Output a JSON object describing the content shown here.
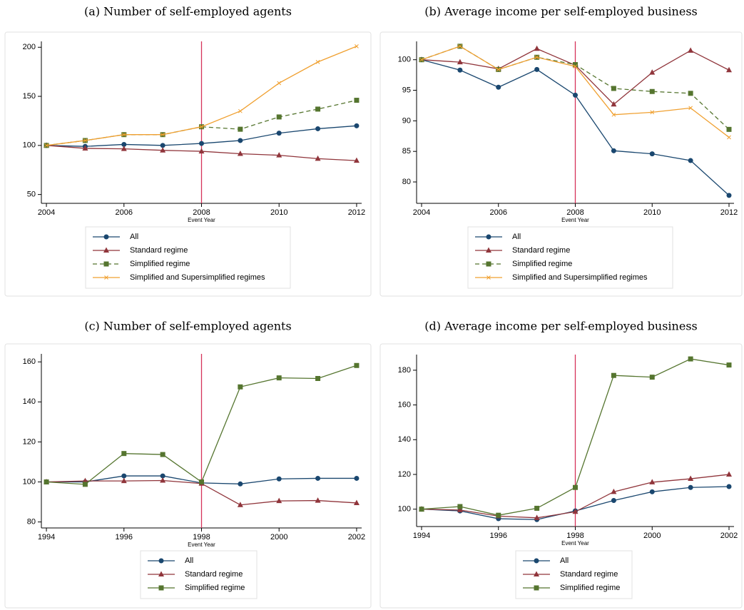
{
  "chart_data": [
    {
      "type": "line",
      "title": "(a) Number of self-employed agents",
      "xlabel": "Event Year",
      "x": [
        2004,
        2005,
        2006,
        2007,
        2008,
        2009,
        2010,
        2011,
        2012
      ],
      "xlim": [
        2003.87,
        2012.13
      ],
      "xticks": [
        2004,
        2006,
        2008,
        2010,
        2012
      ],
      "ylim": [
        41,
        206
      ],
      "yticks": [
        50,
        100,
        150,
        200
      ],
      "event_line": 2008,
      "event_line_color": "#d6335a",
      "series": [
        {
          "name": "All",
          "color": "#1a476f",
          "marker": "circle",
          "dashed": false,
          "values": [
            100,
            99,
            101,
            100,
            102,
            105,
            112.5,
            117,
            120
          ]
        },
        {
          "name": "Standard regime",
          "color": "#90353b",
          "marker": "triangle",
          "dashed": false,
          "values": [
            100,
            97,
            96.5,
            95,
            94,
            91.5,
            90,
            86.5,
            84.5
          ]
        },
        {
          "name": "Simplified regime",
          "color": "#55752f",
          "marker": "square",
          "dashed": true,
          "values": [
            100,
            105,
            111,
            111,
            119,
            116.5,
            129,
            137,
            146
          ]
        },
        {
          "name": "Simplified and Supersimplified regimes",
          "color": "#f0a030",
          "marker": "x",
          "dashed": false,
          "values": [
            100,
            105,
            111,
            111,
            119,
            135,
            163.5,
            185,
            201
          ]
        }
      ]
    },
    {
      "type": "line",
      "title": "(b) Average income per self-employed business",
      "xlabel": "Event Year",
      "x": [
        2004,
        2005,
        2006,
        2007,
        2008,
        2009,
        2010,
        2011,
        2012
      ],
      "xlim": [
        2003.87,
        2012.13
      ],
      "xticks": [
        2004,
        2006,
        2008,
        2010,
        2012
      ],
      "ylim": [
        76.5,
        103
      ],
      "yticks": [
        80,
        85,
        90,
        95,
        100
      ],
      "event_line": 2008,
      "event_line_color": "#d6335a",
      "series": [
        {
          "name": "All",
          "color": "#1a476f",
          "marker": "circle",
          "dashed": false,
          "values": [
            100,
            98.3,
            95.5,
            98.4,
            94.2,
            85.1,
            84.6,
            83.5,
            77.8
          ]
        },
        {
          "name": "Standard regime",
          "color": "#90353b",
          "marker": "triangle",
          "dashed": false,
          "values": [
            100,
            99.6,
            98.5,
            101.8,
            99.1,
            92.7,
            97.9,
            101.5,
            98.3
          ]
        },
        {
          "name": "Simplified regime",
          "color": "#55752f",
          "marker": "square",
          "dashed": true,
          "values": [
            100,
            102.2,
            98.4,
            100.4,
            99.2,
            95.3,
            94.8,
            94.5,
            88.6
          ]
        },
        {
          "name": "Simplified and Supersimplified regimes",
          "color": "#f0a030",
          "marker": "x",
          "dashed": false,
          "values": [
            100,
            102.2,
            98.4,
            100.4,
            98.9,
            91,
            91.4,
            92.1,
            87.3
          ]
        }
      ]
    },
    {
      "type": "line",
      "title": "(c) Number of self-employed agents",
      "xlabel": "Event Year",
      "x": [
        1994,
        1995,
        1996,
        1997,
        1998,
        1999,
        2000,
        2001,
        2002
      ],
      "xlim": [
        1993.87,
        2002.13
      ],
      "xticks": [
        1994,
        1996,
        1998,
        2000,
        2002
      ],
      "ylim": [
        77,
        164
      ],
      "yticks": [
        80,
        100,
        120,
        140,
        160
      ],
      "event_line": 1998,
      "event_line_color": "#d6335a",
      "series": [
        {
          "name": "All",
          "color": "#1a476f",
          "marker": "circle",
          "dashed": false,
          "values": [
            100,
            100,
            103,
            103,
            99.5,
            99,
            101.5,
            101.8,
            101.8
          ]
        },
        {
          "name": "Standard regime",
          "color": "#90353b",
          "marker": "triangle",
          "dashed": false,
          "values": [
            100,
            100.5,
            100.5,
            100.7,
            99.2,
            88.5,
            90.5,
            90.7,
            89.5
          ]
        },
        {
          "name": "Simplified regime",
          "color": "#55752f",
          "marker": "square",
          "dashed": false,
          "values": [
            100,
            98.8,
            114.2,
            113.7,
            100,
            147.5,
            152,
            151.7,
            158.2
          ]
        }
      ]
    },
    {
      "type": "line",
      "title": "(d) Average income per self-employed business",
      "xlabel": "Event Year",
      "x": [
        1994,
        1995,
        1996,
        1997,
        1998,
        1999,
        2000,
        2001,
        2002
      ],
      "xlim": [
        1993.87,
        2002.13
      ],
      "xticks": [
        1994,
        1996,
        1998,
        2000,
        2002
      ],
      "ylim": [
        90,
        189
      ],
      "yticks": [
        100,
        120,
        140,
        160,
        180
      ],
      "event_line": 1998,
      "event_line_color": "#d6335a",
      "series": [
        {
          "name": "All",
          "color": "#1a476f",
          "marker": "circle",
          "dashed": false,
          "values": [
            100,
            99,
            94.5,
            94,
            99,
            105,
            110,
            112.5,
            113
          ]
        },
        {
          "name": "Standard regime",
          "color": "#90353b",
          "marker": "triangle",
          "dashed": false,
          "values": [
            100,
            99.5,
            96,
            95,
            98.5,
            110,
            115.5,
            117.5,
            120
          ]
        },
        {
          "name": "Simplified regime",
          "color": "#55752f",
          "marker": "square",
          "dashed": false,
          "values": [
            100,
            101.5,
            96.5,
            100.5,
            112.5,
            177,
            176,
            186.5,
            183
          ]
        }
      ]
    }
  ]
}
